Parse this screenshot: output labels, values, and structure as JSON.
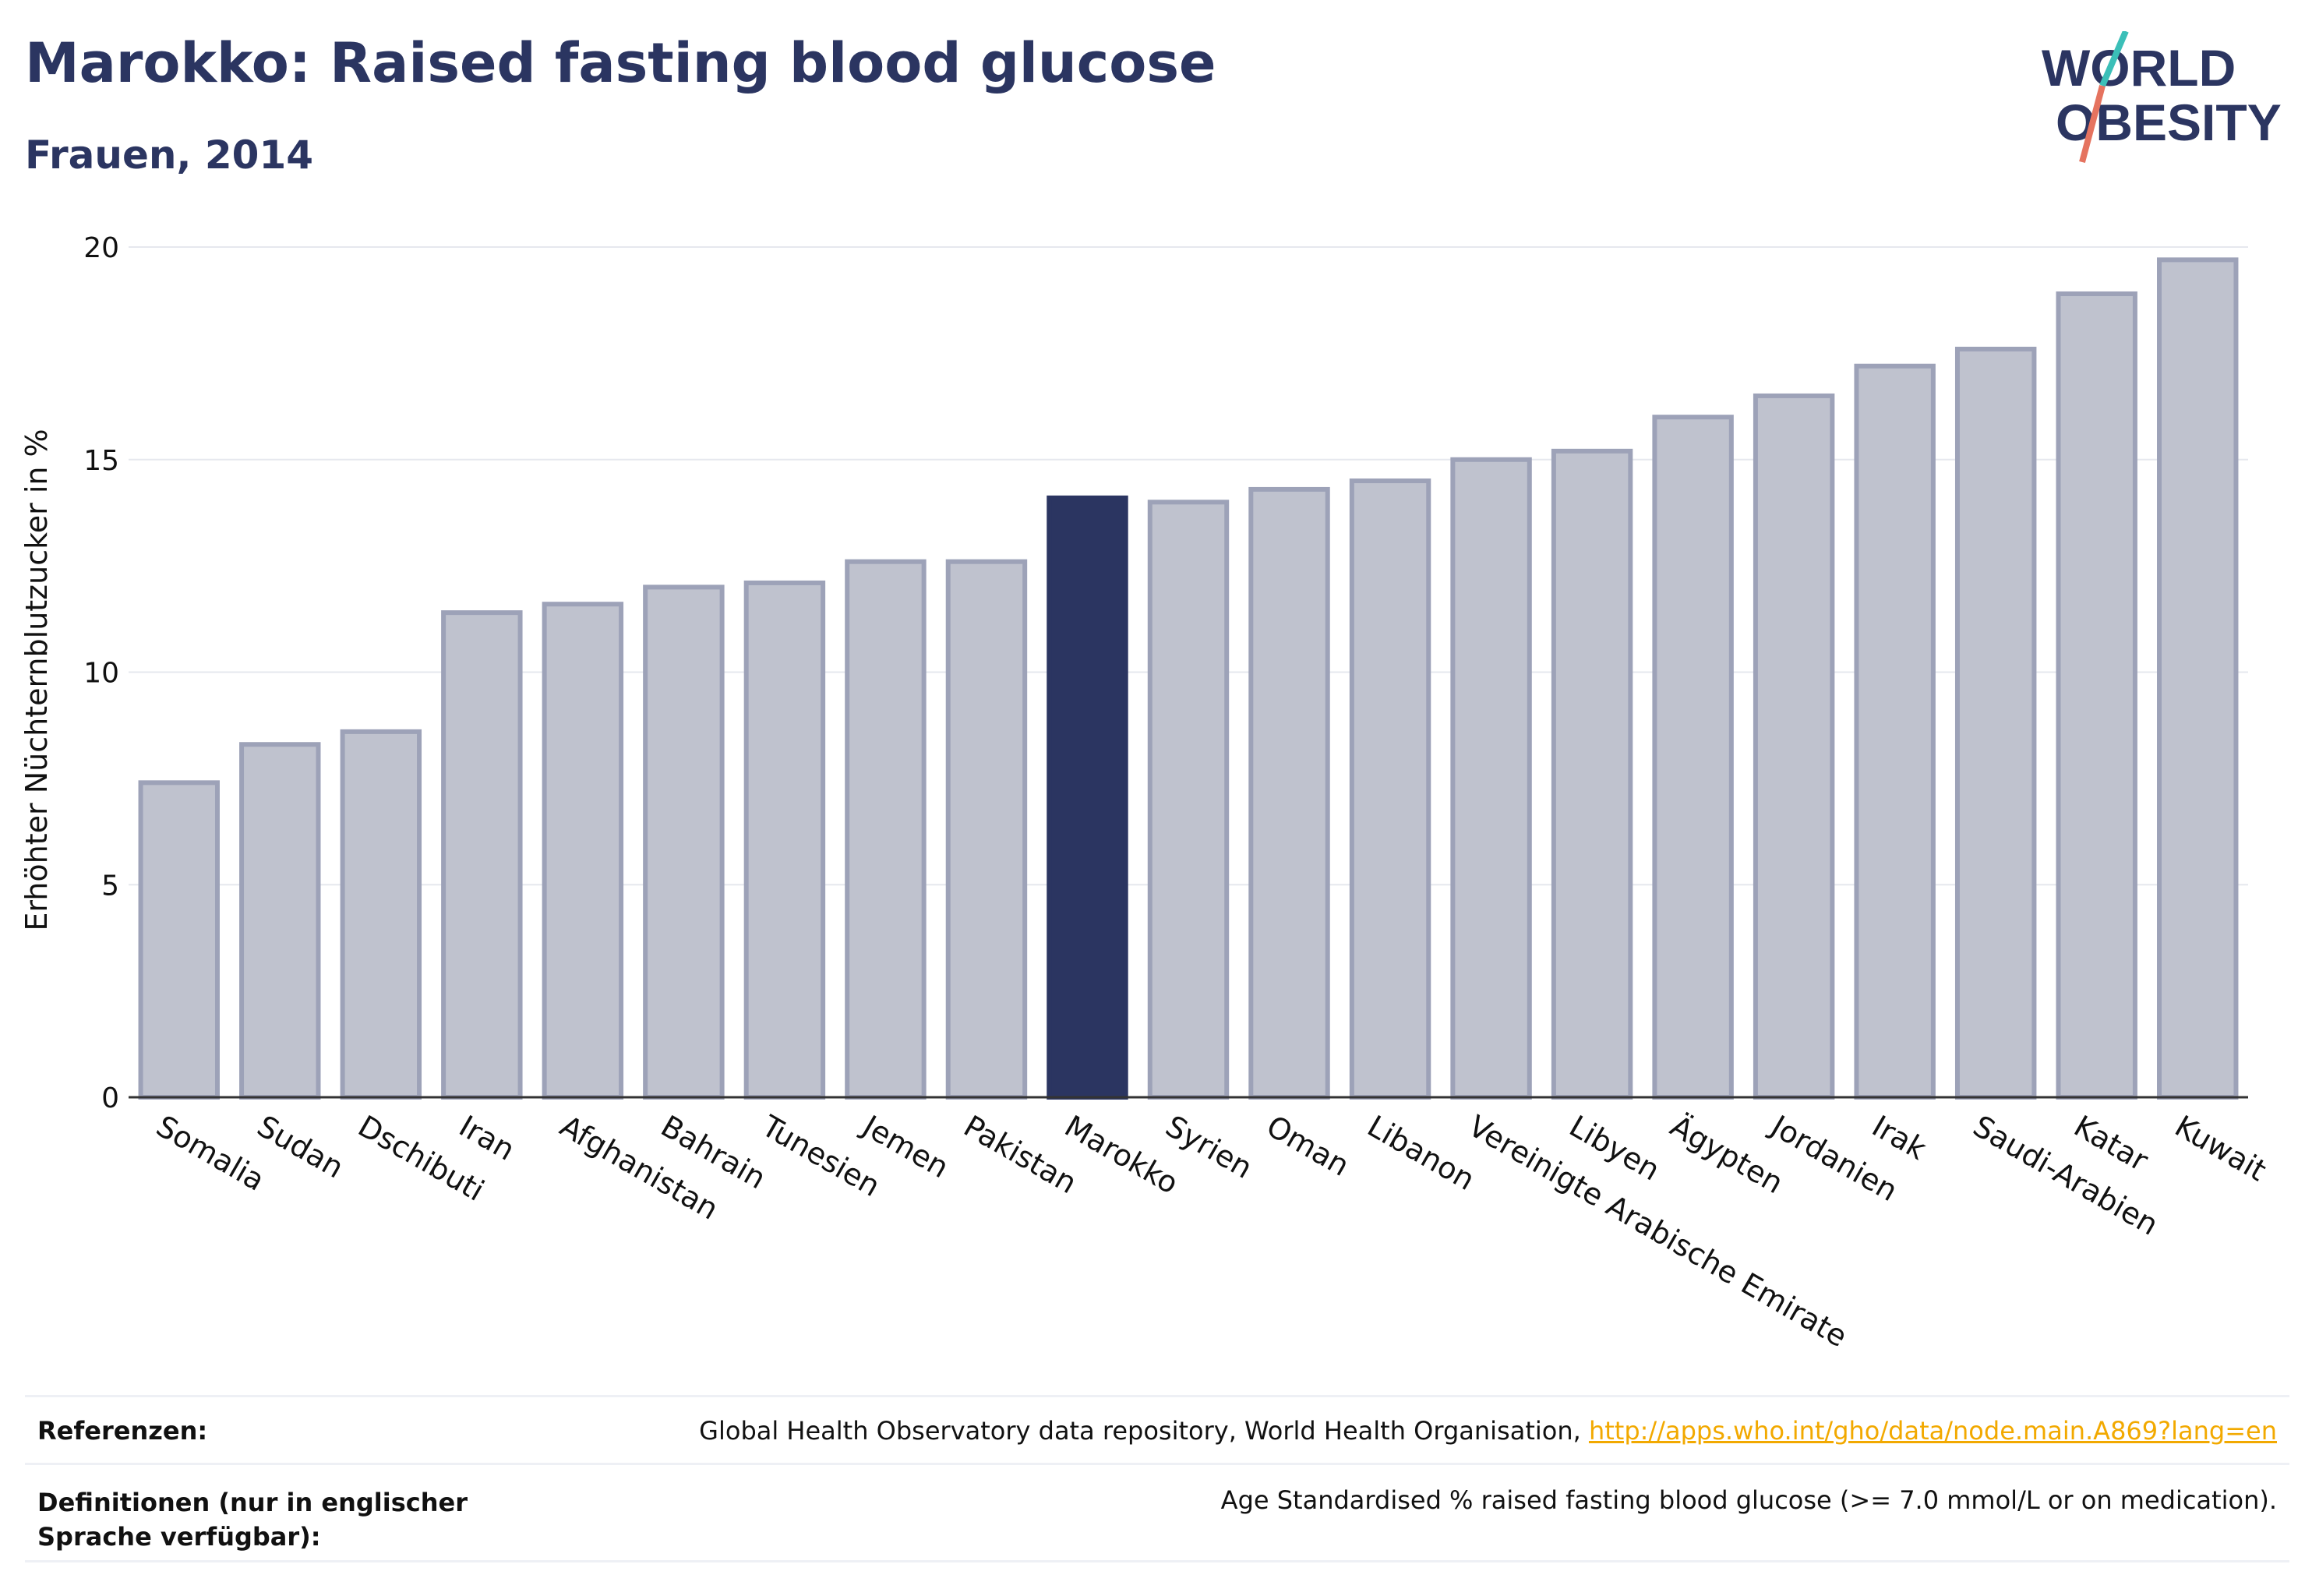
{
  "header": {
    "title": "Marokko: Raised fasting blood glucose",
    "subtitle": "Frauen, 2014"
  },
  "logo": {
    "line1": "WORLD",
    "line2": "OBESITY"
  },
  "chart_data": {
    "type": "bar",
    "categories": [
      "Somalia",
      "Sudan",
      "Dschibuti",
      "Iran",
      "Afghanistan",
      "Bahrain",
      "Tunesien",
      "Jemen",
      "Pakistan",
      "Marokko",
      "Syrien",
      "Oman",
      "Libanon",
      "Vereinigte Arabische Emirate",
      "Libyen",
      "Ägypten",
      "Jordanien",
      "Irak",
      "Saudi-Arabien",
      "Katar",
      "Kuwait"
    ],
    "values": [
      7.4,
      8.3,
      8.6,
      11.4,
      11.6,
      12.0,
      12.1,
      12.6,
      12.6,
      14.1,
      14.0,
      14.3,
      14.5,
      15.0,
      15.2,
      16.0,
      16.5,
      17.2,
      17.6,
      18.9,
      19.7
    ],
    "highlight": "Marokko",
    "ylabel": "Erhöhter Nüchternblutzucker in %",
    "xlabel": "",
    "ylim": [
      0,
      20
    ],
    "yticks": [
      0,
      5,
      10,
      15,
      20
    ],
    "grid": true,
    "colors": {
      "bar": "#bfc2ce",
      "bar_stroke": "#9da2b8",
      "highlight": "#2b3561",
      "grid": "#e6e8ee",
      "axis": "#333333",
      "text": "#111111"
    }
  },
  "references": {
    "ref_label": "Referenzen:",
    "ref_text": "Global Health Observatory data repository, World Health Organisation, ",
    "ref_link": "http://apps.who.int/gho/data/node.main.A869?lang=en",
    "def_label": "Definitionen (nur in englischer Sprache verfügbar):",
    "def_text": "Age Standardised % raised fasting blood glucose (>= 7.0 mmol/L or on medication)."
  }
}
